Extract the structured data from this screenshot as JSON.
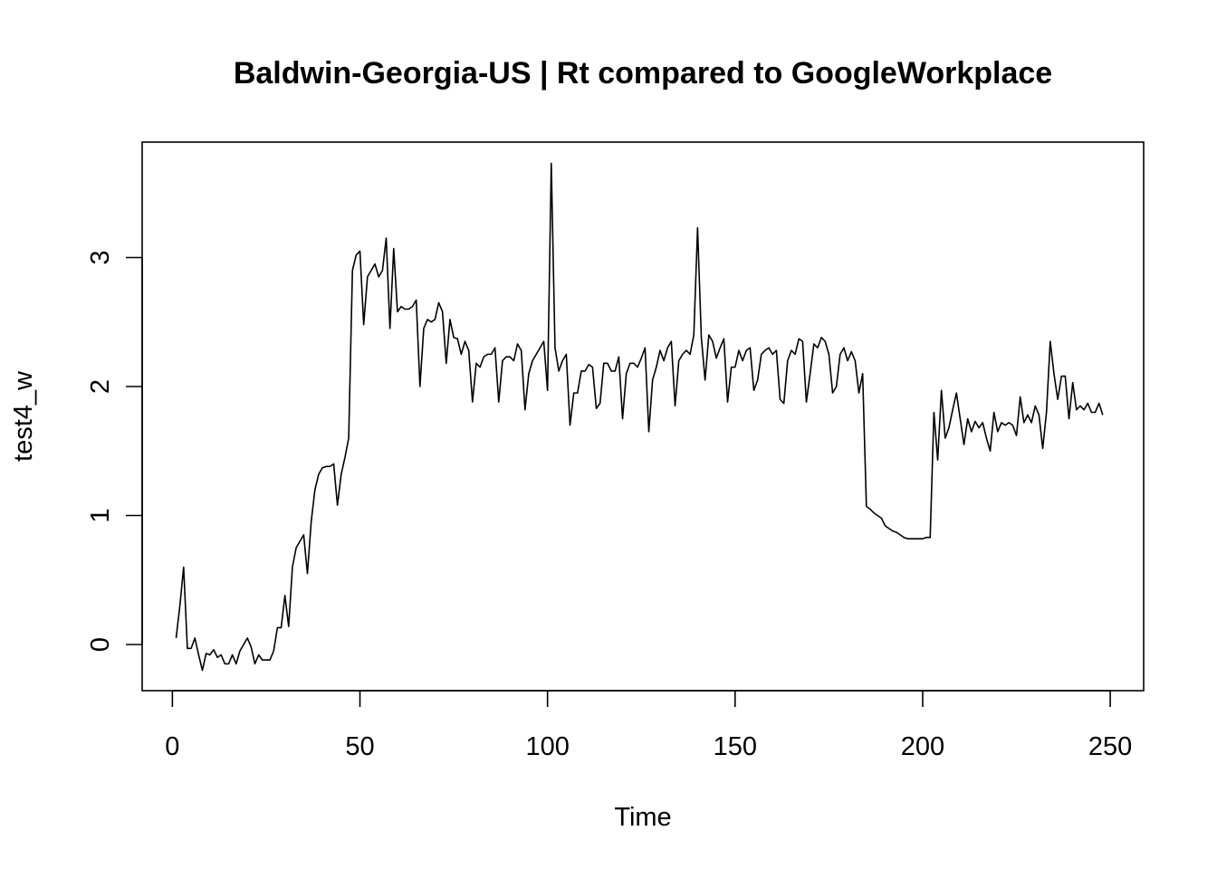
{
  "chart_data": {
    "type": "line",
    "title": "Baldwin-Georgia-US | Rt compared to GoogleWorkplace",
    "xlabel": "Time",
    "ylabel": "test4_w",
    "xlim": [
      1,
      248
    ],
    "ylim": [
      -0.2,
      3.75
    ],
    "x_ticks": [
      0,
      50,
      100,
      150,
      200,
      250
    ],
    "y_ticks": [
      0,
      1,
      2,
      3
    ],
    "grid": false,
    "series": [
      {
        "x": [
          1,
          2,
          3,
          4,
          5,
          6,
          7,
          8,
          9,
          10,
          11,
          12,
          13,
          14,
          15,
          16,
          17,
          18,
          19,
          20,
          21,
          22,
          23,
          24,
          25,
          26,
          27,
          28,
          29,
          30,
          31,
          32,
          33,
          34,
          35,
          36,
          37,
          38,
          39,
          40,
          41,
          42,
          43,
          44,
          45,
          46,
          47,
          48,
          49,
          50,
          51,
          52,
          53,
          54,
          55,
          56,
          57,
          58,
          59,
          60,
          61,
          62,
          63,
          64,
          65,
          66,
          67,
          68,
          69,
          70,
          71,
          72,
          73,
          74,
          75,
          76,
          77,
          78,
          79,
          80,
          81,
          82,
          83,
          84,
          85,
          86,
          87,
          88,
          89,
          90,
          91,
          92,
          93,
          94,
          95,
          96,
          97,
          98,
          99,
          100,
          101,
          102,
          103,
          104,
          105,
          106,
          107,
          108,
          109,
          110,
          111,
          112,
          113,
          114,
          115,
          116,
          117,
          118,
          119,
          120,
          121,
          122,
          123,
          124,
          125,
          126,
          127,
          128,
          129,
          130,
          131,
          132,
          133,
          134,
          135,
          136,
          137,
          138,
          139,
          140,
          141,
          142,
          143,
          144,
          145,
          146,
          147,
          148,
          149,
          150,
          151,
          152,
          153,
          154,
          155,
          156,
          157,
          158,
          159,
          160,
          161,
          162,
          163,
          164,
          165,
          166,
          167,
          168,
          169,
          170,
          171,
          172,
          173,
          174,
          175,
          176,
          177,
          178,
          179,
          180,
          181,
          182,
          183,
          184,
          185,
          186,
          187,
          188,
          189,
          190,
          191,
          192,
          193,
          194,
          195,
          196,
          197,
          198,
          199,
          200,
          201,
          202,
          203,
          204,
          205,
          206,
          207,
          208,
          209,
          210,
          211,
          212,
          213,
          214,
          215,
          216,
          217,
          218,
          219,
          220,
          221,
          222,
          223,
          224,
          225,
          226,
          227,
          228,
          229,
          230,
          231,
          232,
          233,
          234,
          235,
          236,
          237,
          238,
          239,
          240,
          241,
          242,
          243,
          244,
          245,
          246,
          247,
          248
        ],
        "values": [
          0.05,
          0.3,
          0.6,
          -0.03,
          -0.03,
          0.05,
          -0.08,
          -0.2,
          -0.07,
          -0.08,
          -0.04,
          -0.1,
          -0.08,
          -0.15,
          -0.15,
          -0.08,
          -0.15,
          -0.05,
          0.0,
          0.05,
          -0.02,
          -0.15,
          -0.08,
          -0.12,
          -0.12,
          -0.12,
          -0.05,
          0.13,
          0.13,
          0.38,
          0.14,
          0.6,
          0.75,
          0.8,
          0.85,
          0.55,
          0.95,
          1.2,
          1.32,
          1.37,
          1.38,
          1.38,
          1.4,
          1.08,
          1.32,
          1.45,
          1.6,
          2.9,
          3.02,
          3.05,
          2.48,
          2.85,
          2.9,
          2.95,
          2.85,
          2.9,
          3.15,
          2.45,
          3.07,
          2.58,
          2.62,
          2.6,
          2.6,
          2.62,
          2.67,
          2.0,
          2.45,
          2.52,
          2.5,
          2.52,
          2.65,
          2.58,
          2.18,
          2.52,
          2.38,
          2.37,
          2.25,
          2.35,
          2.28,
          1.88,
          2.18,
          2.15,
          2.23,
          2.25,
          2.25,
          2.3,
          1.88,
          2.2,
          2.23,
          2.23,
          2.2,
          2.33,
          2.28,
          1.82,
          2.1,
          2.2,
          2.25,
          2.3,
          2.35,
          1.97,
          3.73,
          2.3,
          2.12,
          2.2,
          2.25,
          1.7,
          1.95,
          1.95,
          2.12,
          2.12,
          2.17,
          2.15,
          1.83,
          1.87,
          2.18,
          2.18,
          2.12,
          2.12,
          2.23,
          1.75,
          2.1,
          2.18,
          2.18,
          2.15,
          2.22,
          2.3,
          1.65,
          2.05,
          2.15,
          2.28,
          2.2,
          2.3,
          2.35,
          1.85,
          2.2,
          2.25,
          2.28,
          2.25,
          2.4,
          3.23,
          2.38,
          2.05,
          2.4,
          2.35,
          2.22,
          2.3,
          2.37,
          1.88,
          2.15,
          2.15,
          2.28,
          2.2,
          2.28,
          2.3,
          1.97,
          2.05,
          2.25,
          2.28,
          2.3,
          2.25,
          2.28,
          1.9,
          1.87,
          2.2,
          2.28,
          2.25,
          2.37,
          2.35,
          1.88,
          2.1,
          2.33,
          2.3,
          2.38,
          2.35,
          2.25,
          1.95,
          2.0,
          2.25,
          2.3,
          2.2,
          2.27,
          2.2,
          1.95,
          2.1,
          1.07,
          1.05,
          1.02,
          1.0,
          0.98,
          0.92,
          0.9,
          0.88,
          0.87,
          0.85,
          0.83,
          0.82,
          0.82,
          0.82,
          0.82,
          0.82,
          0.83,
          0.83,
          1.8,
          1.43,
          1.97,
          1.6,
          1.68,
          1.82,
          1.95,
          1.75,
          1.55,
          1.75,
          1.65,
          1.73,
          1.68,
          1.72,
          1.6,
          1.5,
          1.8,
          1.65,
          1.72,
          1.7,
          1.72,
          1.7,
          1.62,
          1.92,
          1.72,
          1.78,
          1.72,
          1.85,
          1.78,
          1.52,
          1.8,
          2.35,
          2.1,
          1.9,
          2.08,
          2.08,
          1.75,
          2.03,
          1.82,
          1.85,
          1.82,
          1.87,
          1.8,
          1.8,
          1.87,
          1.78
        ]
      }
    ]
  }
}
